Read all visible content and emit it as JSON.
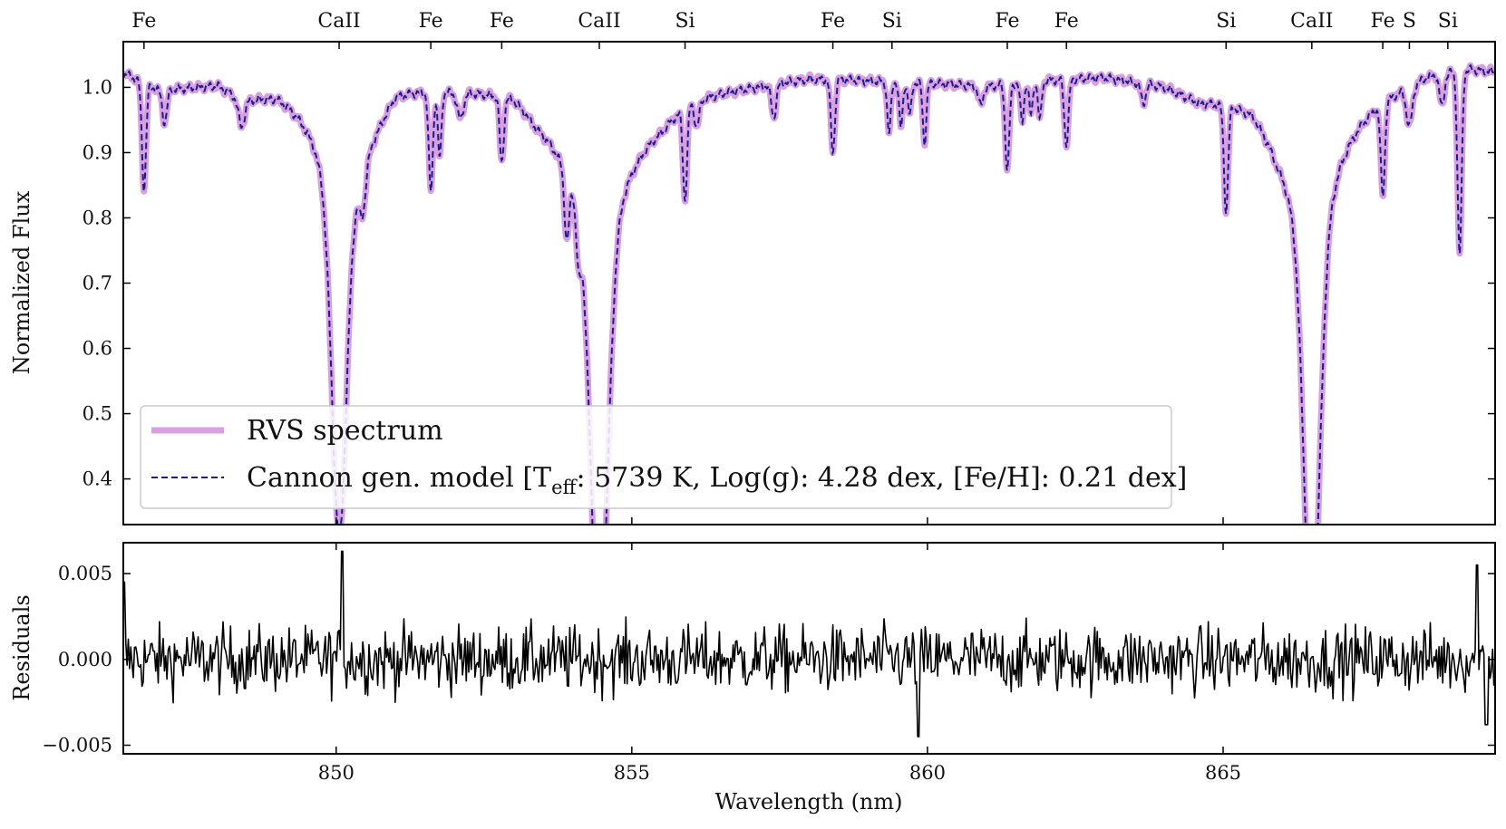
{
  "chart_data": [
    {
      "type": "line",
      "panel": "spectrum",
      "ylabel": "Normalized Flux",
      "xlim": [
        846.4,
        869.6
      ],
      "ylim": [
        0.33,
        1.07
      ],
      "yticks": [
        0.4,
        0.5,
        0.6,
        0.7,
        0.8,
        0.9,
        1.0
      ],
      "ytick_labels": [
        "0.4",
        "0.5",
        "0.6",
        "0.7",
        "0.8",
        "0.9",
        "1.0"
      ],
      "continuum": [
        [
          846.4,
          1.025
        ],
        [
          847.0,
          1.0
        ],
        [
          848.0,
          1.01
        ],
        [
          848.4,
          0.99
        ],
        [
          849.0,
          1.005
        ],
        [
          849.6,
          0.99
        ],
        [
          850.4,
          0.95
        ],
        [
          851.0,
          1.015
        ],
        [
          852.0,
          1.01
        ],
        [
          853.0,
          1.015
        ],
        [
          853.4,
          0.99
        ],
        [
          854.0,
          0.985
        ],
        [
          855.5,
          0.985
        ],
        [
          856.0,
          1.005
        ],
        [
          857.0,
          1.01
        ],
        [
          858.0,
          1.02
        ],
        [
          859.0,
          1.015
        ],
        [
          860.0,
          1.01
        ],
        [
          861.0,
          1.005
        ],
        [
          862.0,
          1.015
        ],
        [
          863.0,
          1.02
        ],
        [
          864.0,
          1.01
        ],
        [
          864.6,
          0.99
        ],
        [
          865.5,
          1.0
        ],
        [
          865.9,
          0.97
        ],
        [
          866.5,
          0.95
        ],
        [
          867.0,
          0.99
        ],
        [
          868.0,
          1.015
        ],
        [
          868.5,
          1.03
        ],
        [
          869.2,
          1.035
        ],
        [
          869.6,
          1.03
        ]
      ],
      "absorption_lines": [
        {
          "wl": 850.05,
          "depth": 0.48,
          "width": 0.12,
          "wing": 0.4
        },
        {
          "wl": 854.45,
          "depth": 0.62,
          "width": 0.14,
          "wing": 0.6
        },
        {
          "wl": 866.5,
          "depth": 0.59,
          "width": 0.13,
          "wing": 0.52
        },
        {
          "wl": 846.75,
          "depth": 0.16,
          "width": 0.035,
          "wing": 0
        },
        {
          "wl": 847.1,
          "depth": 0.05,
          "width": 0.04,
          "wing": 0
        },
        {
          "wl": 848.4,
          "depth": 0.04,
          "width": 0.05,
          "wing": 0
        },
        {
          "wl": 850.45,
          "depth": 0.06,
          "width": 0.05,
          "wing": 0
        },
        {
          "wl": 851.6,
          "depth": 0.15,
          "width": 0.035,
          "wing": 0
        },
        {
          "wl": 851.75,
          "depth": 0.1,
          "width": 0.03,
          "wing": 0
        },
        {
          "wl": 852.1,
          "depth": 0.04,
          "width": 0.05,
          "wing": 0
        },
        {
          "wl": 852.8,
          "depth": 0.1,
          "width": 0.035,
          "wing": 0
        },
        {
          "wl": 853.9,
          "depth": 0.1,
          "width": 0.04,
          "wing": 0
        },
        {
          "wl": 854.1,
          "depth": 0.08,
          "width": 0.04,
          "wing": 0
        },
        {
          "wl": 855.9,
          "depth": 0.14,
          "width": 0.035,
          "wing": 0
        },
        {
          "wl": 856.1,
          "depth": 0.04,
          "width": 0.04,
          "wing": 0
        },
        {
          "wl": 857.4,
          "depth": 0.05,
          "width": 0.04,
          "wing": 0
        },
        {
          "wl": 858.4,
          "depth": 0.11,
          "width": 0.035,
          "wing": 0
        },
        {
          "wl": 859.35,
          "depth": 0.08,
          "width": 0.03,
          "wing": 0
        },
        {
          "wl": 859.55,
          "depth": 0.07,
          "width": 0.03,
          "wing": 0
        },
        {
          "wl": 859.7,
          "depth": 0.05,
          "width": 0.03,
          "wing": 0
        },
        {
          "wl": 859.95,
          "depth": 0.09,
          "width": 0.03,
          "wing": 0
        },
        {
          "wl": 860.9,
          "depth": 0.03,
          "width": 0.04,
          "wing": 0
        },
        {
          "wl": 861.35,
          "depth": 0.13,
          "width": 0.035,
          "wing": 0
        },
        {
          "wl": 861.6,
          "depth": 0.06,
          "width": 0.03,
          "wing": 0
        },
        {
          "wl": 861.75,
          "depth": 0.05,
          "width": 0.03,
          "wing": 0
        },
        {
          "wl": 861.9,
          "depth": 0.06,
          "width": 0.03,
          "wing": 0
        },
        {
          "wl": 862.35,
          "depth": 0.1,
          "width": 0.035,
          "wing": 0
        },
        {
          "wl": 863.65,
          "depth": 0.03,
          "width": 0.04,
          "wing": 0
        },
        {
          "wl": 865.05,
          "depth": 0.16,
          "width": 0.035,
          "wing": 0
        },
        {
          "wl": 867.7,
          "depth": 0.14,
          "width": 0.035,
          "wing": 0
        },
        {
          "wl": 868.15,
          "depth": 0.06,
          "width": 0.05,
          "wing": 0
        },
        {
          "wl": 868.7,
          "depth": 0.05,
          "width": 0.04,
          "wing": 0
        },
        {
          "wl": 869.0,
          "depth": 0.28,
          "width": 0.035,
          "wing": 0
        }
      ],
      "series": [
        {
          "name": "RVS spectrum",
          "color": "#d8a0de"
        },
        {
          "name": "Cannon gen. model",
          "color": "#1c1c8c"
        }
      ],
      "legend": {
        "placement": "lower-left",
        "entries": [
          {
            "text": "RVS spectrum"
          },
          {
            "text_before": "Cannon gen. model [T",
            "subscript": "eff",
            "text_after": ": 5739 K, Log(g): 4.28 dex, [Fe/H]: 0.21 dex]"
          }
        ]
      },
      "line_markers": [
        {
          "label": "Fe",
          "wl": 846.75
        },
        {
          "label": "CaII",
          "wl": 850.05
        },
        {
          "label": "Fe",
          "wl": 851.6
        },
        {
          "label": "Fe",
          "wl": 852.8
        },
        {
          "label": "CaII",
          "wl": 854.45
        },
        {
          "label": "Si",
          "wl": 855.9
        },
        {
          "label": "Fe",
          "wl": 858.4
        },
        {
          "label": "Si",
          "wl": 859.4
        },
        {
          "label": "Fe",
          "wl": 861.35
        },
        {
          "label": "Fe",
          "wl": 862.35
        },
        {
          "label": "Si",
          "wl": 865.05
        },
        {
          "label": "CaII",
          "wl": 866.5
        },
        {
          "label": "Fe",
          "wl": 867.7
        },
        {
          "label": "S",
          "wl": 868.15
        },
        {
          "label": "Si",
          "wl": 868.8
        }
      ]
    },
    {
      "type": "line",
      "panel": "residuals",
      "xlabel": "Wavelength (nm)",
      "ylabel": "Residuals",
      "xlim": [
        846.4,
        869.6
      ],
      "ylim": [
        -0.0055,
        0.0068
      ],
      "xticks": [
        850,
        855,
        860,
        865
      ],
      "xtick_labels": [
        "850",
        "855",
        "860",
        "865"
      ],
      "yticks": [
        -0.005,
        0.0,
        0.005
      ],
      "ytick_labels": [
        "−0.005",
        "0.000",
        "0.005"
      ],
      "series": [
        {
          "name": "Residuals",
          "color": "#000000"
        }
      ],
      "noise_level": 0.0013,
      "n_points": 1100,
      "peaks": [
        {
          "wl": 846.4,
          "value": 0.0045
        },
        {
          "wl": 850.1,
          "value": 0.0063
        },
        {
          "wl": 859.85,
          "value": -0.0045
        },
        {
          "wl": 869.3,
          "value": 0.0055
        },
        {
          "wl": 869.45,
          "value": -0.0038
        }
      ]
    }
  ]
}
